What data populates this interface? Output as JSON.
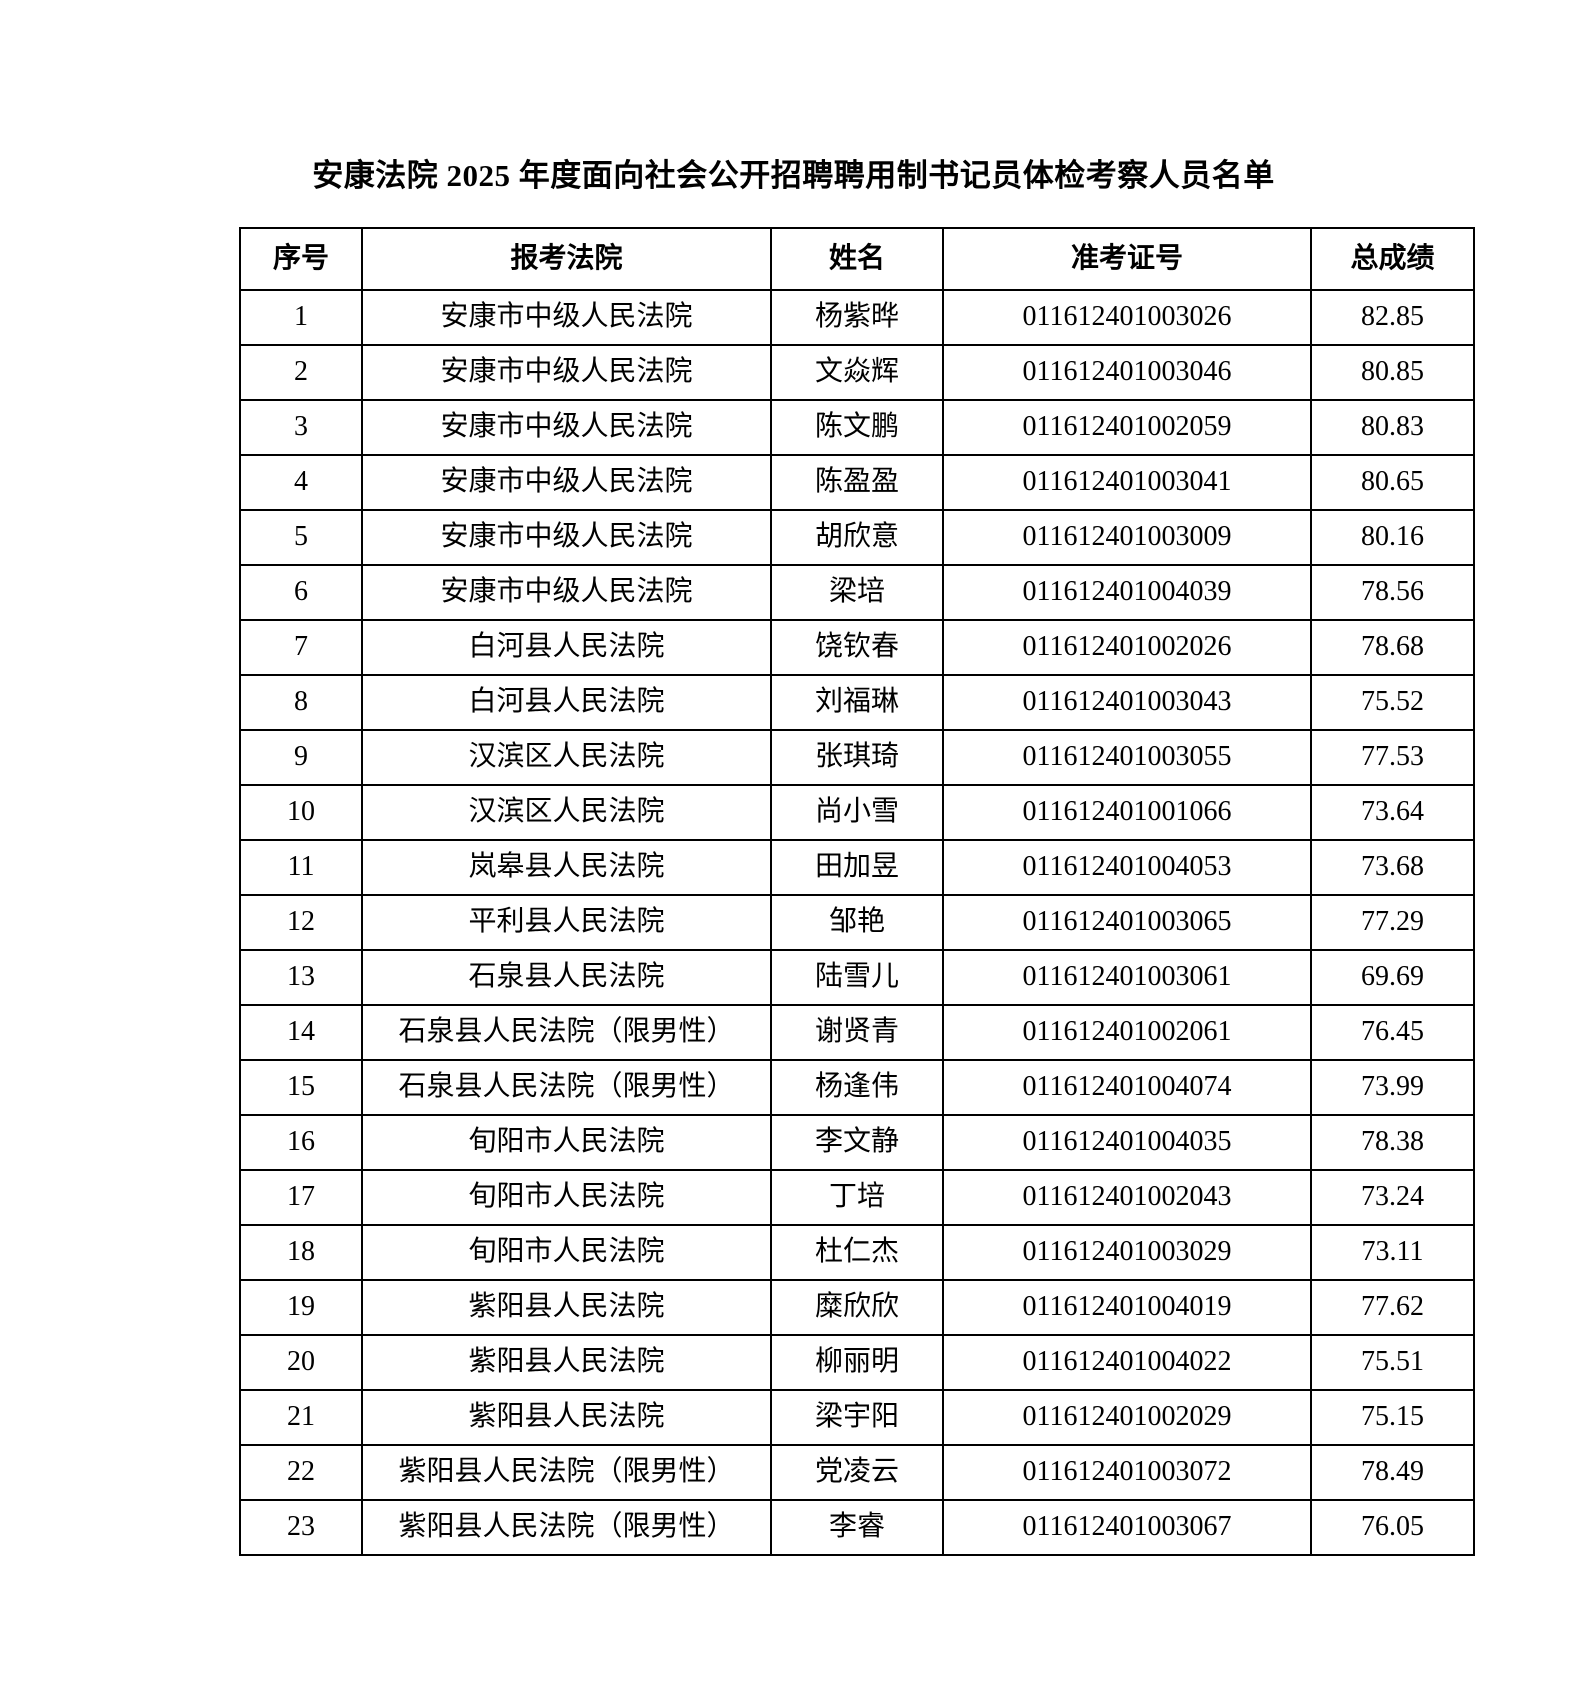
{
  "page": {
    "title": "安康法院 2025 年度面向社会公开招聘聘用制书记员体检考察人员名单"
  },
  "table": {
    "headers": [
      "序号",
      "报考法院",
      "姓名",
      "准考证号",
      "总成绩"
    ],
    "rows": [
      {
        "no": "1",
        "court": "安康市中级人民法院",
        "name": "杨紫晔",
        "ticket_no": "011612401003026",
        "score": "82.85"
      },
      {
        "no": "2",
        "court": "安康市中级人民法院",
        "name": "文焱辉",
        "ticket_no": "011612401003046",
        "score": "80.85"
      },
      {
        "no": "3",
        "court": "安康市中级人民法院",
        "name": "陈文鹏",
        "ticket_no": "011612401002059",
        "score": "80.83"
      },
      {
        "no": "4",
        "court": "安康市中级人民法院",
        "name": "陈盈盈",
        "ticket_no": "011612401003041",
        "score": "80.65"
      },
      {
        "no": "5",
        "court": "安康市中级人民法院",
        "name": "胡欣意",
        "ticket_no": "011612401003009",
        "score": "80.16"
      },
      {
        "no": "6",
        "court": "安康市中级人民法院",
        "name": "梁培",
        "ticket_no": "011612401004039",
        "score": "78.56"
      },
      {
        "no": "7",
        "court": "白河县人民法院",
        "name": "饶钦春",
        "ticket_no": "011612401002026",
        "score": "78.68"
      },
      {
        "no": "8",
        "court": "白河县人民法院",
        "name": "刘福琳",
        "ticket_no": "011612401003043",
        "score": "75.52"
      },
      {
        "no": "9",
        "court": "汉滨区人民法院",
        "name": "张琪琦",
        "ticket_no": "011612401003055",
        "score": "77.53"
      },
      {
        "no": "10",
        "court": "汉滨区人民法院",
        "name": "尚小雪",
        "ticket_no": "011612401001066",
        "score": "73.64"
      },
      {
        "no": "11",
        "court": "岚皋县人民法院",
        "name": "田加昱",
        "ticket_no": "011612401004053",
        "score": "73.68"
      },
      {
        "no": "12",
        "court": "平利县人民法院",
        "name": "邹艳",
        "ticket_no": "011612401003065",
        "score": "77.29"
      },
      {
        "no": "13",
        "court": "石泉县人民法院",
        "name": "陆雪儿",
        "ticket_no": "011612401003061",
        "score": "69.69"
      },
      {
        "no": "14",
        "court": "石泉县人民法院（限男性）",
        "name": "谢贤青",
        "ticket_no": "011612401002061",
        "score": "76.45"
      },
      {
        "no": "15",
        "court": "石泉县人民法院（限男性）",
        "name": "杨逢伟",
        "ticket_no": "011612401004074",
        "score": "73.99"
      },
      {
        "no": "16",
        "court": "旬阳市人民法院",
        "name": "李文静",
        "ticket_no": "011612401004035",
        "score": "78.38"
      },
      {
        "no": "17",
        "court": "旬阳市人民法院",
        "name": "丁培",
        "ticket_no": "011612401002043",
        "score": "73.24"
      },
      {
        "no": "18",
        "court": "旬阳市人民法院",
        "name": "杜仁杰",
        "ticket_no": "011612401003029",
        "score": "73.11"
      },
      {
        "no": "19",
        "court": "紫阳县人民法院",
        "name": "糜欣欣",
        "ticket_no": "011612401004019",
        "score": "77.62"
      },
      {
        "no": "20",
        "court": "紫阳县人民法院",
        "name": "柳丽明",
        "ticket_no": "011612401004022",
        "score": "75.51"
      },
      {
        "no": "21",
        "court": "紫阳县人民法院",
        "name": "梁宇阳",
        "ticket_no": "011612401002029",
        "score": "75.15"
      },
      {
        "no": "22",
        "court": "紫阳县人民法院（限男性）",
        "name": "党凌云",
        "ticket_no": "011612401003072",
        "score": "78.49"
      },
      {
        "no": "23",
        "court": "紫阳县人民法院（限男性）",
        "name": "李睿",
        "ticket_no": "011612401003067",
        "score": "76.05"
      }
    ]
  }
}
